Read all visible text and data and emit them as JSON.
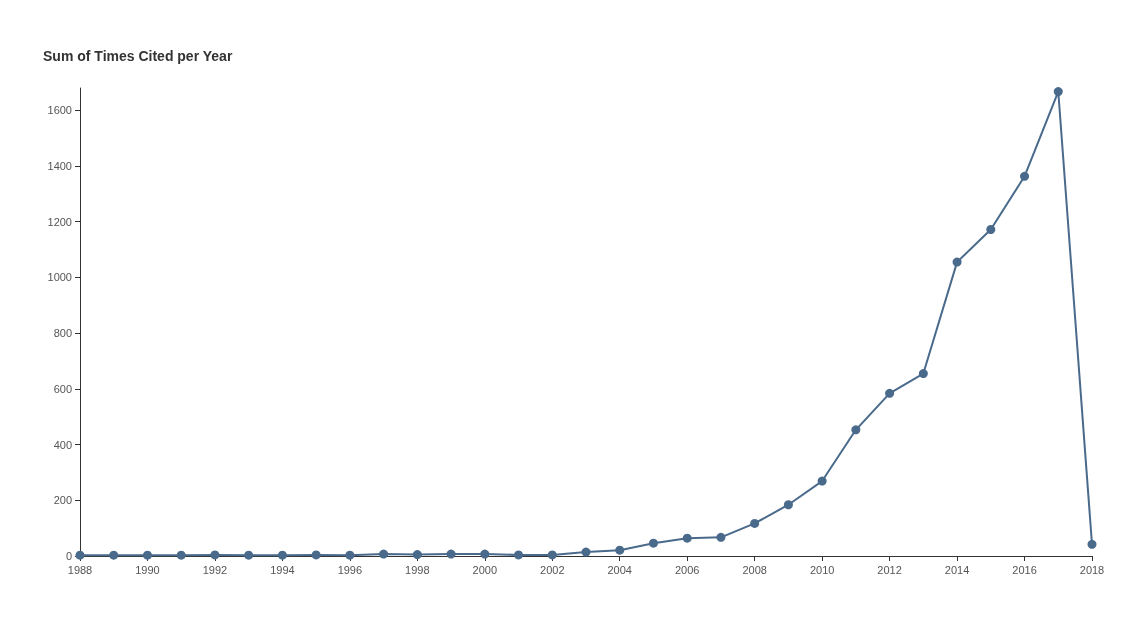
{
  "chart_data": {
    "type": "line",
    "title": "Sum of Times Cited per Year",
    "x": [
      1988,
      1989,
      1990,
      1991,
      1992,
      1993,
      1994,
      1995,
      1996,
      1997,
      1998,
      1999,
      2000,
      2001,
      2002,
      2003,
      2004,
      2005,
      2006,
      2007,
      2008,
      2009,
      2010,
      2011,
      2012,
      2013,
      2014,
      2015,
      2016,
      2017,
      2018
    ],
    "series": [
      {
        "color": "#4a6a8c",
        "values": [
          3,
          3,
          3,
          3,
          4,
          3,
          3,
          4,
          3,
          7,
          5,
          7,
          7,
          4,
          4,
          14,
          21,
          46,
          64,
          67,
          117,
          184,
          269,
          453,
          584,
          655,
          1055,
          1172,
          1363,
          1667,
          42
        ]
      }
    ],
    "xlim": [
      1988,
      2018
    ],
    "xticks": [
      1988,
      1990,
      1992,
      1994,
      1996,
      1998,
      2000,
      2002,
      2004,
      2006,
      2008,
      2010,
      2012,
      2014,
      2016,
      2018
    ],
    "ylim": [
      0,
      1680
    ],
    "yticks": [
      0,
      200,
      400,
      600,
      800,
      1000,
      1200,
      1400,
      1600
    ],
    "grid": false,
    "marker": "circle",
    "line_style": "solid"
  }
}
